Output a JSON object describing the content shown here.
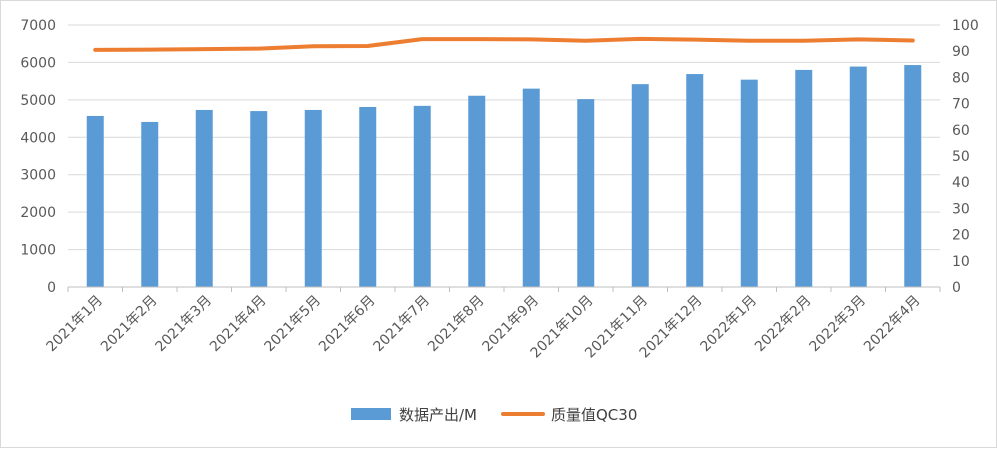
{
  "chart_data": {
    "type": "bar+line",
    "categories": [
      "2021年1月",
      "2021年2月",
      "2021年3月",
      "2021年4月",
      "2021年5月",
      "2021年6月",
      "2021年7月",
      "2021年8月",
      "2021年9月",
      "2021年10月",
      "2021年11月",
      "2021年12月",
      "2022年1月",
      "2022年2月",
      "2022年3月",
      "2022年4月"
    ],
    "series": [
      {
        "name": "数据产出/M",
        "type": "bar",
        "axis": "left",
        "color": "#5b9bd5",
        "values": [
          4570,
          4410,
          4730,
          4700,
          4730,
          4810,
          4840,
          5110,
          5300,
          5020,
          5420,
          5690,
          5540,
          5800,
          5890,
          5930
        ]
      },
      {
        "name": "质量值QC30",
        "type": "line",
        "axis": "right",
        "color": "#ed7d31",
        "values": [
          90.5,
          90.6,
          90.8,
          91.0,
          91.9,
          92.0,
          94.6,
          94.6,
          94.5,
          94.0,
          94.7,
          94.4,
          94.0,
          94.0,
          94.5,
          94.1
        ]
      }
    ],
    "y_left": {
      "min": 0,
      "max": 7000,
      "step": 1000
    },
    "y_right": {
      "min": 0,
      "max": 100,
      "step": 10
    },
    "grid": true,
    "legend": "bottom"
  }
}
